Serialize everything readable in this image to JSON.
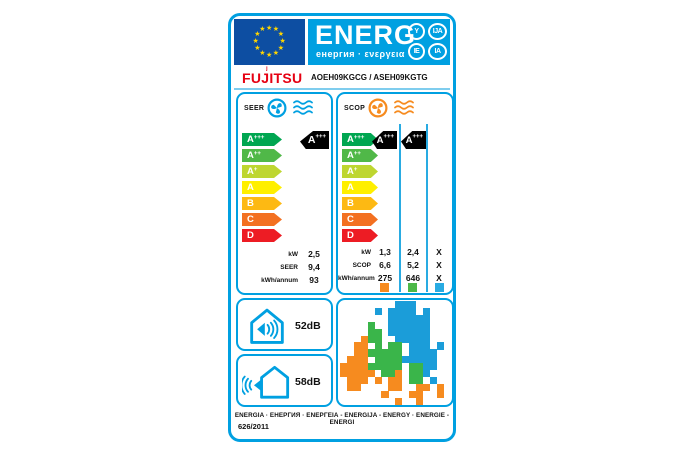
{
  "header": {
    "title": "ENERG",
    "subtitle": "енергия · ενεργεια",
    "badges": [
      "Y",
      "IJA",
      "IE",
      "IA"
    ]
  },
  "brand": {
    "name": "FUJITSU",
    "model": "AOEH09KGCG / ASEH09KGTG"
  },
  "scale_classes": [
    {
      "label": "A",
      "sup": "+++",
      "color": "#00a651"
    },
    {
      "label": "A",
      "sup": "++",
      "color": "#50b848"
    },
    {
      "label": "A",
      "sup": "+",
      "color": "#bed630"
    },
    {
      "label": "A",
      "sup": "",
      "color": "#ffef00"
    },
    {
      "label": "B",
      "sup": "",
      "color": "#fdb913"
    },
    {
      "label": "C",
      "sup": "",
      "color": "#f37021"
    },
    {
      "label": "D",
      "sup": "",
      "color": "#ed1c24"
    }
  ],
  "seer": {
    "title": "SEER",
    "rated_class": {
      "label": "A",
      "sup": "+++"
    },
    "rows": [
      {
        "label": "kW",
        "value": "2,5"
      },
      {
        "label": "SEER",
        "value": "9,4"
      },
      {
        "label": "kWh/annum",
        "value": "93"
      }
    ]
  },
  "scop": {
    "title": "SCOP",
    "row_labels": [
      "kW",
      "SCOP",
      "kWh/annum"
    ],
    "columns": [
      {
        "zone": "warmer",
        "rated_class": {
          "label": "A",
          "sup": "+++"
        },
        "kw": "1,3",
        "scop": "6,6",
        "kwh": "275",
        "color": "#f68b1f"
      },
      {
        "zone": "average",
        "rated_class": {
          "label": "A",
          "sup": "+++"
        },
        "kw": "2,4",
        "scop": "5,2",
        "kwh": "646",
        "color": "#4cb848"
      },
      {
        "zone": "colder",
        "rated_class": null,
        "kw": "X",
        "scop": "X",
        "kwh": "X",
        "color": "#29abe2"
      }
    ]
  },
  "noise": {
    "indoor": "52dB",
    "outdoor": "58dB"
  },
  "map": {
    "colors": {
      "O": "#f68b1f",
      "G": "#3ab54a",
      "B": "#1b9dd9"
    },
    "grid": [
      "........BBB.....",
      ".....B.BBBB.B...",
      ".......BBBBBB...",
      "....G..BBBBBB...",
      "....GG.BBBBBB...",
      "...OGG..BBBBB...",
      "..OO.G.GG.BBB.B.",
      "..OOGGGGG.BBBB..",
      ".OOO.GGGGBBBBB..",
      "OOOOGGGGG.GGBB..",
      "OOOOO.GGO.GGB...",
      ".OOO.O.OO.GG.B..",
      ".OO....OO..OO.O.",
      "......O...OO..O.",
      "........O..O...."
    ]
  },
  "footer": {
    "languages": "ENERGIA · ЕНЕРГИЯ · ΕΝΕΡΓΕΙΑ - ENERGIJA - ENERGY · ENERGIE - ENERGI",
    "regulation": "626/2011"
  },
  "colors": {
    "label_blue": "#00a0e1",
    "eu_flag_blue": "#0d4ea2",
    "star_yellow": "#ffd500",
    "fujitsu_red": "#e60012",
    "rated_arrow_black": "#000000"
  },
  "star_count": 12
}
